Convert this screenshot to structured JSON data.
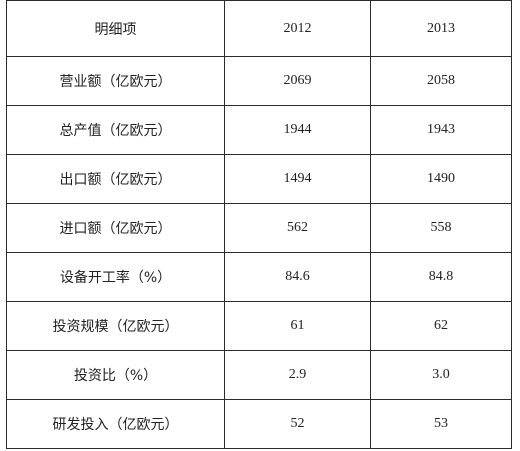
{
  "table": {
    "headers": [
      "明细项",
      "2012",
      "2013"
    ],
    "rows": [
      {
        "item": "营业额（亿欧元）",
        "y2012": "2069",
        "y2013": "2058"
      },
      {
        "item": "总产值（亿欧元）",
        "y2012": "1944",
        "y2013": "1943"
      },
      {
        "item": "出口额（亿欧元）",
        "y2012": "1494",
        "y2013": "1490"
      },
      {
        "item": "进口额（亿欧元）",
        "y2012": "562",
        "y2013": "558"
      },
      {
        "item": "设备开工率（%）",
        "y2012": "84.6",
        "y2013": "84.8"
      },
      {
        "item": "投资规模（亿欧元）",
        "y2012": "61",
        "y2013": "62"
      },
      {
        "item": "投资比（%）",
        "y2012": "2.9",
        "y2013": "3.0"
      },
      {
        "item": "研发投入（亿欧元）",
        "y2012": "52",
        "y2013": "53"
      }
    ]
  }
}
